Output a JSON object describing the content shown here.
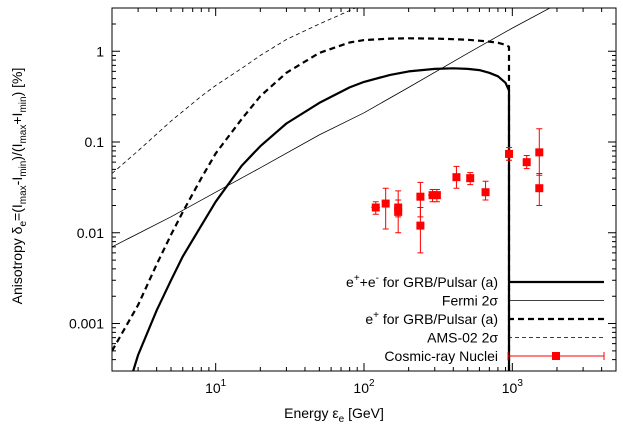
{
  "chart_data": {
    "type": "line",
    "xlabel": "Energy εe [GeV]",
    "ylabel": "Anisotropy δe=(Imax-Imin)/(Imax+Imin) [%]",
    "xscale": "log",
    "yscale": "log",
    "xlim": [
      2,
      5000
    ],
    "ylim": [
      0.0003,
      3
    ],
    "x_ticks": [
      {
        "value": 10,
        "base": "10",
        "exp": "1"
      },
      {
        "value": 100,
        "base": "10",
        "exp": "2"
      },
      {
        "value": 1000,
        "base": "10",
        "exp": "3"
      }
    ],
    "y_ticks": [
      {
        "value": 0.001,
        "label": "0.001"
      },
      {
        "value": 0.01,
        "label": "0.01"
      },
      {
        "value": 0.1,
        "label": "0.1"
      },
      {
        "value": 1,
        "label": "1"
      }
    ],
    "legend_position": "bottom-right",
    "series": [
      {
        "name": "e⁺+e⁻ for GRB/Pulsar (a)",
        "style": "thick-solid",
        "color": "#000000",
        "x": [
          2.78,
          3,
          4,
          5,
          6,
          8,
          10,
          15,
          20,
          30,
          50,
          80,
          100,
          150,
          200,
          300,
          400,
          500,
          600,
          700,
          800,
          900,
          950,
          950
        ],
        "y": [
          0.0003,
          0.00045,
          0.0014,
          0.003,
          0.0055,
          0.012,
          0.022,
          0.055,
          0.09,
          0.16,
          0.27,
          0.4,
          0.46,
          0.55,
          0.6,
          0.64,
          0.65,
          0.64,
          0.62,
          0.58,
          0.53,
          0.45,
          0.37,
          0.0003
        ]
      },
      {
        "name": "Fermi 2σ",
        "style": "thin-solid",
        "color": "#000000",
        "x": [
          2,
          5,
          10,
          20,
          50,
          100,
          200,
          500,
          1000,
          2000,
          5000
        ],
        "y": [
          0.007,
          0.015,
          0.028,
          0.052,
          0.12,
          0.21,
          0.4,
          0.95,
          1.8,
          3.3,
          7.5
        ]
      },
      {
        "name": "e⁺ for GRB/Pulsar (a)",
        "style": "thick-dashed",
        "color": "#000000",
        "x": [
          2,
          3,
          4,
          5,
          6,
          8,
          10,
          15,
          20,
          30,
          50,
          80,
          100,
          150,
          200,
          300,
          400,
          500,
          600,
          700,
          800,
          900,
          950,
          950
        ],
        "y": [
          0.0005,
          0.0016,
          0.0045,
          0.0095,
          0.017,
          0.04,
          0.075,
          0.18,
          0.32,
          0.58,
          0.96,
          1.25,
          1.33,
          1.38,
          1.39,
          1.38,
          1.36,
          1.34,
          1.31,
          1.28,
          1.24,
          1.18,
          1.12,
          0.0003
        ]
      },
      {
        "name": "AMS-02 2σ",
        "style": "thin-dashed",
        "color": "#000000",
        "x": [
          2,
          3,
          5,
          8,
          10,
          15,
          20,
          30,
          50,
          70,
          100
        ],
        "y": [
          0.045,
          0.08,
          0.17,
          0.32,
          0.42,
          0.65,
          0.9,
          1.35,
          2.0,
          2.55,
          3.3
        ]
      }
    ],
    "data_points": {
      "name": "Cosmic-ray Nuclei",
      "color": "#ff0000",
      "points": [
        {
          "x": 120,
          "y": 0.019,
          "ylo": 0.016,
          "yhi": 0.022,
          "xlo": 112,
          "xhi": 128
        },
        {
          "x": 140,
          "y": 0.021,
          "ylo": 0.011,
          "yhi": 0.031,
          "xlo": 133,
          "xhi": 148
        },
        {
          "x": 170,
          "y": 0.019,
          "ylo": 0.015,
          "yhi": 0.023,
          "xlo": 160,
          "xhi": 180
        },
        {
          "x": 170,
          "y": 0.017,
          "ylo": 0.01,
          "yhi": 0.029,
          "xlo": 162,
          "xhi": 178
        },
        {
          "x": 240,
          "y": 0.025,
          "ylo": 0.015,
          "yhi": 0.036,
          "xlo": 230,
          "xhi": 252
        },
        {
          "x": 240,
          "y": 0.012,
          "ylo": 0.006,
          "yhi": 0.019,
          "xlo": 230,
          "xhi": 252
        },
        {
          "x": 290,
          "y": 0.026,
          "ylo": 0.022,
          "yhi": 0.03,
          "xlo": 270,
          "xhi": 310
        },
        {
          "x": 310,
          "y": 0.026,
          "ylo": 0.022,
          "yhi": 0.03,
          "xlo": 300,
          "xhi": 320
        },
        {
          "x": 420,
          "y": 0.041,
          "ylo": 0.031,
          "yhi": 0.054,
          "xlo": 400,
          "xhi": 440
        },
        {
          "x": 520,
          "y": 0.04,
          "ylo": 0.034,
          "yhi": 0.046,
          "xlo": 495,
          "xhi": 545
        },
        {
          "x": 660,
          "y": 0.028,
          "ylo": 0.023,
          "yhi": 0.037,
          "xlo": 630,
          "xhi": 690
        },
        {
          "x": 950,
          "y": 0.074,
          "ylo": 0.063,
          "yhi": 0.087,
          "xlo": 910,
          "xhi": 990
        },
        {
          "x": 1250,
          "y": 0.06,
          "ylo": 0.051,
          "yhi": 0.071,
          "xlo": 1200,
          "xhi": 1300
        },
        {
          "x": 1520,
          "y": 0.077,
          "ylo": 0.043,
          "yhi": 0.14,
          "xlo": 1460,
          "xhi": 1580
        },
        {
          "x": 1520,
          "y": 0.031,
          "ylo": 0.02,
          "yhi": 0.045,
          "xlo": 1460,
          "xhi": 1580
        }
      ]
    }
  }
}
